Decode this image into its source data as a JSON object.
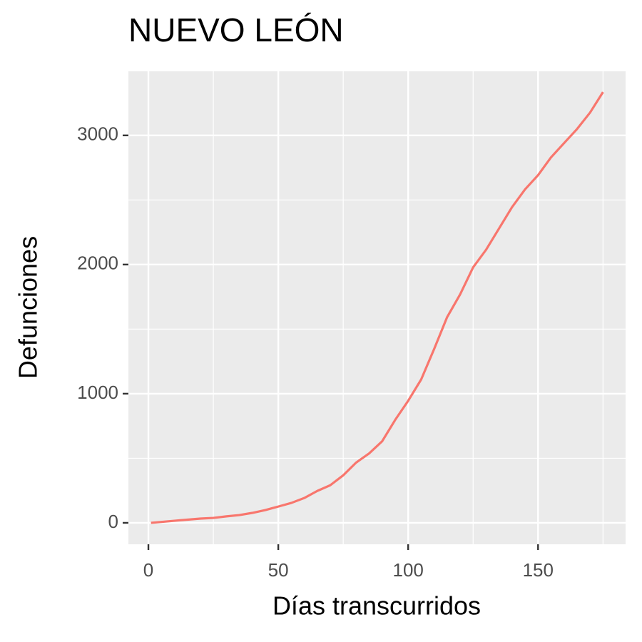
{
  "chart_data": {
    "type": "line",
    "title": "NUEVO LEÓN",
    "x_label": "Días transcurridos",
    "y_label": "Defunciones",
    "x": [
      1,
      10,
      20,
      25,
      30,
      35,
      40,
      45,
      50,
      55,
      60,
      65,
      70,
      75,
      80,
      85,
      90,
      95,
      100,
      105,
      110,
      115,
      120,
      125,
      130,
      135,
      140,
      145,
      150,
      155,
      160,
      165,
      170,
      175
    ],
    "series": [
      {
        "color": "#f8766d",
        "values": [
          0,
          16,
          33,
          38,
          50,
          60,
          77,
          99,
          126,
          154,
          192,
          247,
          291,
          368,
          467,
          538,
          632,
          797,
          945,
          1110,
          1346,
          1593,
          1769,
          1978,
          2115,
          2280,
          2445,
          2582,
          2692,
          2830,
          2940,
          3049,
          3176,
          3335
        ]
      }
    ],
    "xlim": [
      -7.7,
      183.7
    ],
    "xticks": [
      0,
      50,
      100,
      150
    ],
    "x_minor_breaks": [
      25,
      75,
      125,
      175
    ],
    "ylim": [
      -166,
      3496
    ],
    "yticks": [
      0,
      1000,
      2000,
      3000
    ],
    "y_minor_breaks": [
      500,
      1500,
      2500
    ],
    "grid": true
  }
}
